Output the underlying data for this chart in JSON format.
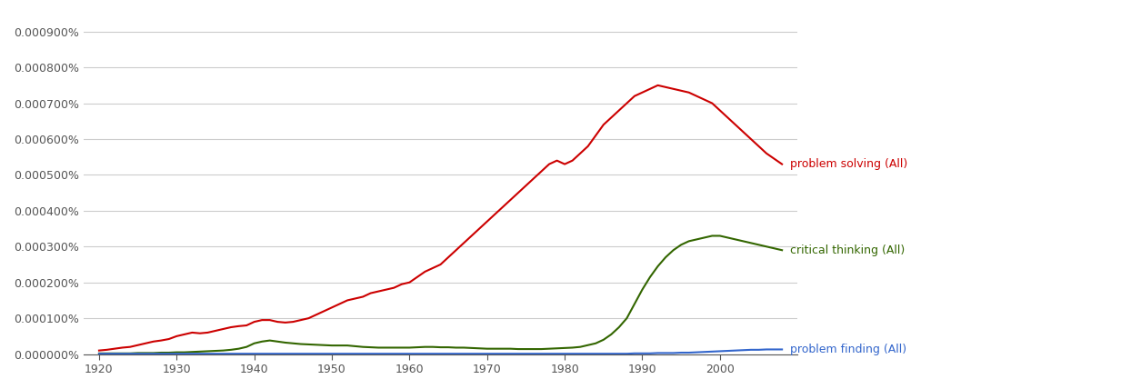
{
  "years": [
    1920,
    1921,
    1922,
    1923,
    1924,
    1925,
    1926,
    1927,
    1928,
    1929,
    1930,
    1931,
    1932,
    1933,
    1934,
    1935,
    1936,
    1937,
    1938,
    1939,
    1940,
    1941,
    1942,
    1943,
    1944,
    1945,
    1946,
    1947,
    1948,
    1949,
    1950,
    1951,
    1952,
    1953,
    1954,
    1955,
    1956,
    1957,
    1958,
    1959,
    1960,
    1961,
    1962,
    1963,
    1964,
    1965,
    1966,
    1967,
    1968,
    1969,
    1970,
    1971,
    1972,
    1973,
    1974,
    1975,
    1976,
    1977,
    1978,
    1979,
    1980,
    1981,
    1982,
    1983,
    1984,
    1985,
    1986,
    1987,
    1988,
    1989,
    1990,
    1991,
    1992,
    1993,
    1994,
    1995,
    1996,
    1997,
    1998,
    1999,
    2000,
    2001,
    2002,
    2003,
    2004,
    2005,
    2006,
    2007,
    2008
  ],
  "problem_solving": [
    1e-07,
    1.2e-07,
    1.5e-07,
    1.8e-07,
    2e-07,
    2.5e-07,
    3e-07,
    3.5e-07,
    3.8e-07,
    4.2e-07,
    5e-07,
    5.5e-07,
    6e-07,
    5.8e-07,
    6e-07,
    6.5e-07,
    7e-07,
    7.5e-07,
    7.8e-07,
    8e-07,
    9e-07,
    9.5e-07,
    9.5e-07,
    9e-07,
    8.8e-07,
    9e-07,
    9.5e-07,
    1e-06,
    1.1e-06,
    1.2e-06,
    1.3e-06,
    1.4e-06,
    1.5e-06,
    1.55e-06,
    1.6e-06,
    1.7e-06,
    1.75e-06,
    1.8e-06,
    1.85e-06,
    1.95e-06,
    2e-06,
    2.15e-06,
    2.3e-06,
    2.4e-06,
    2.5e-06,
    2.7e-06,
    2.9e-06,
    3.1e-06,
    3.3e-06,
    3.5e-06,
    3.7e-06,
    3.9e-06,
    4.1e-06,
    4.3e-06,
    4.5e-06,
    4.7e-06,
    4.9e-06,
    5.1e-06,
    5.3e-06,
    5.4e-06,
    5.3e-06,
    5.4e-06,
    5.6e-06,
    5.8e-06,
    6.1e-06,
    6.4e-06,
    6.6e-06,
    6.8e-06,
    7e-06,
    7.2e-06,
    7.3e-06,
    7.4e-06,
    7.5e-06,
    7.45e-06,
    7.4e-06,
    7.35e-06,
    7.3e-06,
    7.2e-06,
    7.1e-06,
    7e-06,
    6.8e-06,
    6.6e-06,
    6.4e-06,
    6.2e-06,
    6e-06,
    5.8e-06,
    5.6e-06,
    5.45e-06,
    5.3e-06
  ],
  "critical_thinking": [
    2e-08,
    2e-08,
    2e-08,
    2e-08,
    2e-08,
    3e-08,
    3e-08,
    3e-08,
    4e-08,
    4e-08,
    5e-08,
    5e-08,
    6e-08,
    7e-08,
    8e-08,
    9e-08,
    1e-07,
    1.2e-07,
    1.5e-07,
    2e-07,
    3e-07,
    3.5e-07,
    3.8e-07,
    3.5e-07,
    3.2e-07,
    3e-07,
    2.8e-07,
    2.7e-07,
    2.6e-07,
    2.5e-07,
    2.4e-07,
    2.4e-07,
    2.4e-07,
    2.2e-07,
    2e-07,
    1.9e-07,
    1.8e-07,
    1.8e-07,
    1.8e-07,
    1.8e-07,
    1.8e-07,
    1.9e-07,
    2e-07,
    2e-07,
    1.9e-07,
    1.9e-07,
    1.8e-07,
    1.8e-07,
    1.7e-07,
    1.6e-07,
    1.5e-07,
    1.5e-07,
    1.5e-07,
    1.5e-07,
    1.4e-07,
    1.4e-07,
    1.4e-07,
    1.4e-07,
    1.5e-07,
    1.6e-07,
    1.7e-07,
    1.8e-07,
    2e-07,
    2.5e-07,
    3e-07,
    4e-07,
    5.5e-07,
    7.5e-07,
    1e-06,
    1.4e-06,
    1.8e-06,
    2.15e-06,
    2.45e-06,
    2.7e-06,
    2.9e-06,
    3.05e-06,
    3.15e-06,
    3.2e-06,
    3.25e-06,
    3.3e-06,
    3.3e-06,
    3.25e-06,
    3.2e-06,
    3.15e-06,
    3.1e-06,
    3.05e-06,
    3e-06,
    2.95e-06,
    2.9e-06
  ],
  "problem_finding": [
    1e-08,
    1e-08,
    1e-08,
    1e-08,
    1e-08,
    1e-08,
    1e-08,
    1e-08,
    1e-08,
    1e-08,
    1e-08,
    1e-08,
    1e-08,
    1e-08,
    1e-08,
    1e-08,
    1e-08,
    1e-08,
    1e-08,
    1e-08,
    1e-08,
    1e-08,
    1e-08,
    1e-08,
    1e-08,
    1e-08,
    1e-08,
    1e-08,
    1e-08,
    1e-08,
    1e-08,
    1e-08,
    1e-08,
    1e-08,
    1e-08,
    1e-08,
    1e-08,
    1e-08,
    1e-08,
    1e-08,
    1e-08,
    1e-08,
    1e-08,
    1e-08,
    1e-08,
    1e-08,
    1e-08,
    1e-08,
    1e-08,
    1e-08,
    1e-08,
    1e-08,
    1e-08,
    1e-08,
    1e-08,
    1e-08,
    1e-08,
    1e-08,
    1e-08,
    1e-08,
    1e-08,
    1e-08,
    1e-08,
    1e-08,
    1e-08,
    1e-08,
    1e-08,
    1e-08,
    1e-08,
    2e-08,
    2e-08,
    2e-08,
    3e-08,
    3e-08,
    3e-08,
    4e-08,
    4e-08,
    5e-08,
    6e-08,
    7e-08,
    8e-08,
    9e-08,
    1e-07,
    1.1e-07,
    1.2e-07,
    1.2e-07,
    1.3e-07,
    1.3e-07,
    1.3e-07
  ],
  "color_red": "#cc0000",
  "color_green": "#336600",
  "color_blue": "#3366cc",
  "label_red": "problem solving (All)",
  "label_green": "critical thinking (All)",
  "label_blue": "problem finding (All)",
  "bg_color": "#ffffff",
  "grid_color": "#cccccc",
  "axis_color": "#555555",
  "tick_label_color": "#555555",
  "xlim": [
    1918,
    2010
  ],
  "ylim": [
    0,
    9.5e-06
  ],
  "yticks": [
    0.0,
    1e-06,
    2e-06,
    3e-06,
    4e-06,
    5e-06,
    6e-06,
    7e-06,
    8e-06,
    9e-06
  ],
  "xticks": [
    1920,
    1930,
    1940,
    1950,
    1960,
    1970,
    1980,
    1990,
    2000
  ]
}
